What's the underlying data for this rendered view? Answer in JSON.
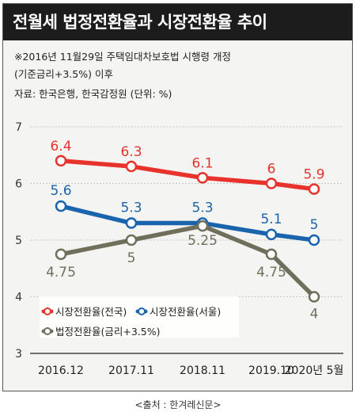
{
  "title": "전월세 법정전환율과 시장전환율 추이",
  "notes": {
    "line1": "※2016년 11월29일 주택임대차보호법 시행령 개정",
    "line2": "(기준금리+3.5%) 이후",
    "source": "자료: 한국은행, 한국감정원  (단위: %)"
  },
  "caption": "<출처 : 한겨레신문>",
  "chart_data": {
    "type": "line",
    "categories": [
      "2016.12",
      "2017.11",
      "2018.11",
      "2019.10",
      "2020년 5월"
    ],
    "ylim": [
      3,
      7
    ],
    "yticks": [
      "3",
      "4",
      "5",
      "6",
      "7"
    ],
    "grid": true,
    "legend_position": "bottom-left",
    "series": [
      {
        "name": "시장전환율(전국)",
        "color": "#e8332d",
        "values": [
          6.4,
          6.3,
          6.1,
          6,
          5.9
        ],
        "labels": [
          "6.4",
          "6.3",
          "6.1",
          "6",
          "5.9"
        ]
      },
      {
        "name": "시장전환율(서울)",
        "color": "#1a64ae",
        "values": [
          5.6,
          5.3,
          5.3,
          5.1,
          5
        ],
        "labels": [
          "5.6",
          "5.3",
          "5.3",
          "5.1",
          "5"
        ]
      },
      {
        "name": "법정전환율(금리+3.5%)",
        "color": "#6f6f5c",
        "values": [
          4.75,
          5,
          5.25,
          4.75,
          4
        ],
        "labels": [
          "4.75",
          "5",
          "5.25",
          "4.75",
          "4"
        ]
      }
    ]
  }
}
